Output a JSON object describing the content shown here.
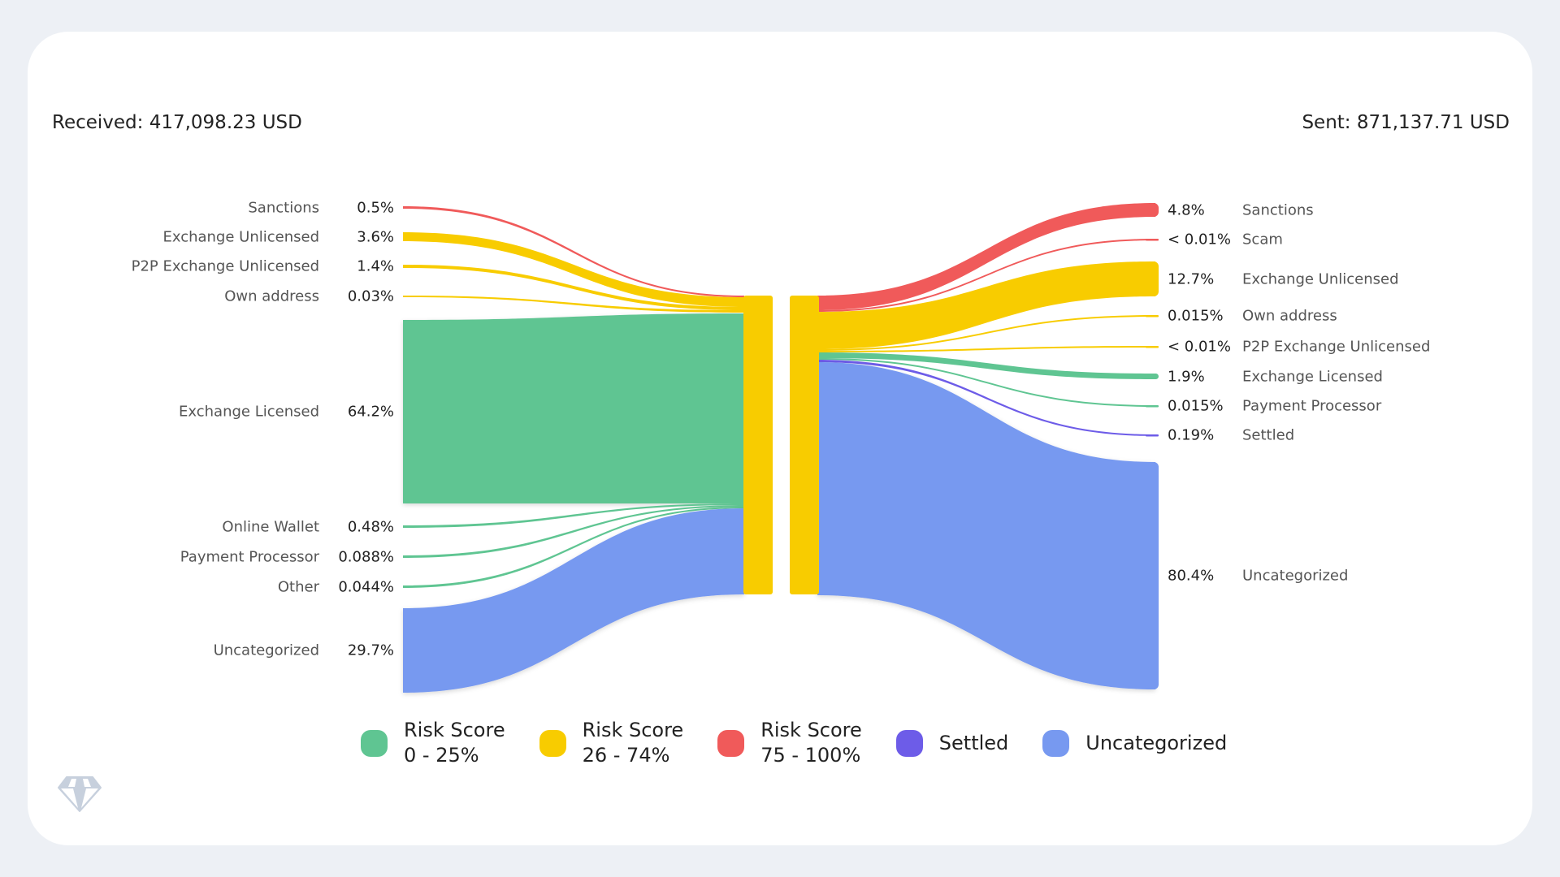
{
  "received_label": "Received: 417,098.23 USD",
  "sent_label": "Sent: 871,137.71 USD",
  "colors": {
    "low": "#5fc592",
    "medium": "#f8cc00",
    "high": "#f05a5a",
    "settled": "#6d5ce8",
    "uncategorized": "#7799f0"
  },
  "chart_data": {
    "type": "sankey",
    "left": [
      {
        "label": "Sanctions",
        "pct": "0.5%",
        "risk": "high"
      },
      {
        "label": "Exchange Unlicensed",
        "pct": "3.6%",
        "risk": "medium"
      },
      {
        "label": "P2P Exchange Unlicensed",
        "pct": "1.4%",
        "risk": "medium"
      },
      {
        "label": "Own address",
        "pct": "0.03%",
        "risk": "medium"
      },
      {
        "label": "Exchange Licensed",
        "pct": "64.2%",
        "risk": "low"
      },
      {
        "label": "Online Wallet",
        "pct": "0.48%",
        "risk": "low"
      },
      {
        "label": "Payment Processor",
        "pct": "0.088%",
        "risk": "low"
      },
      {
        "label": "Other",
        "pct": "0.044%",
        "risk": "low"
      },
      {
        "label": "Uncategorized",
        "pct": "29.7%",
        "risk": "uncategorized"
      }
    ],
    "right": [
      {
        "label": "Sanctions",
        "pct": "4.8%",
        "risk": "high"
      },
      {
        "label": "Scam",
        "pct": "< 0.01%",
        "risk": "high"
      },
      {
        "label": "Exchange Unlicensed",
        "pct": "12.7%",
        "risk": "medium"
      },
      {
        "label": "Own address",
        "pct": "0.015%",
        "risk": "medium"
      },
      {
        "label": "P2P Exchange Unlicensed",
        "pct": "< 0.01%",
        "risk": "medium"
      },
      {
        "label": "Exchange Licensed",
        "pct": "1.9%",
        "risk": "low"
      },
      {
        "label": "Payment Processor",
        "pct": "0.015%",
        "risk": "low"
      },
      {
        "label": "Settled",
        "pct": "0.19%",
        "risk": "settled"
      },
      {
        "label": "Uncategorized",
        "pct": "80.4%",
        "risk": "uncategorized"
      }
    ],
    "center_risk": "medium",
    "legend": [
      {
        "line1": "Risk Score",
        "line2": "0 - 25%",
        "risk": "low"
      },
      {
        "line1": "Risk Score",
        "line2": "26 - 74%",
        "risk": "medium"
      },
      {
        "line1": "Risk Score",
        "line2": "75 - 100%",
        "risk": "high"
      },
      {
        "line1": "Settled",
        "line2": "",
        "risk": "settled"
      },
      {
        "line1": "Uncategorized",
        "line2": "",
        "risk": "uncategorized"
      }
    ]
  },
  "logo": "diamond-icon"
}
